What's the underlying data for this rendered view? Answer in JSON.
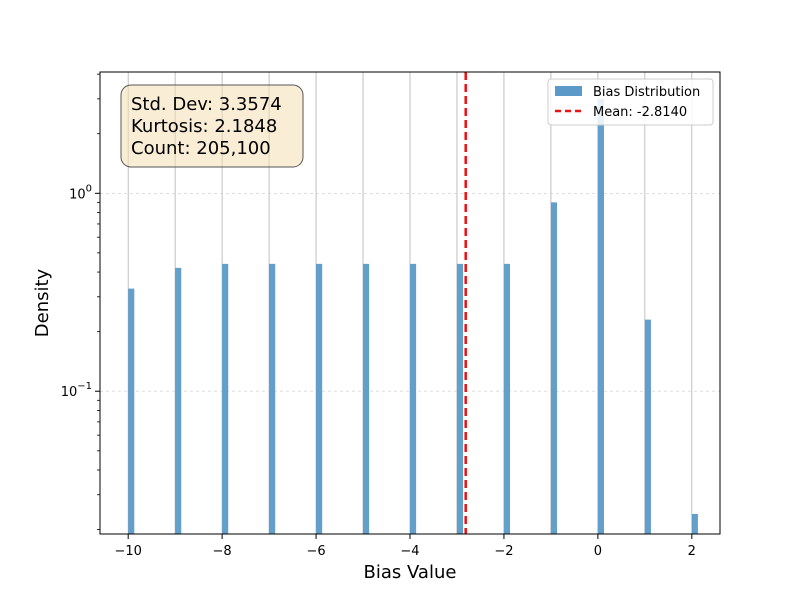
{
  "chart_data": {
    "type": "bar",
    "xlabel": "Bias Value",
    "ylabel": "Density",
    "y_scale": "log",
    "xlim": [
      -10.6,
      2.6
    ],
    "ylim": [
      0.019,
      4.1
    ],
    "x_ticks": [
      -10,
      -8,
      -6,
      -4,
      -2,
      0,
      2
    ],
    "x_tick_labels": [
      "−10",
      "−8",
      "−6",
      "−4",
      "−2",
      "0",
      "2"
    ],
    "y_ticks": [
      {
        "value": 0.1,
        "base": "10",
        "exp": "−1"
      },
      {
        "value": 1,
        "base": "10",
        "exp": "0"
      }
    ],
    "x_grid": true,
    "y_grid": true,
    "series": [
      {
        "name": "Bias Distribution",
        "color": "#5b9ac8",
        "bin_width": 0.13,
        "bins": [
          {
            "x": -10,
            "density": 0.33
          },
          {
            "x": -9,
            "density": 0.42
          },
          {
            "x": -8,
            "density": 0.44
          },
          {
            "x": -7,
            "density": 0.44
          },
          {
            "x": -6,
            "density": 0.44
          },
          {
            "x": -5,
            "density": 0.44
          },
          {
            "x": -4,
            "density": 0.44
          },
          {
            "x": -3,
            "density": 0.44
          },
          {
            "x": -2,
            "density": 0.44
          },
          {
            "x": -1,
            "density": 0.9
          },
          {
            "x": 0,
            "density": 3.0
          },
          {
            "x": 1,
            "density": 0.23
          },
          {
            "x": 2,
            "density": 0.024
          }
        ]
      }
    ],
    "mean_line": {
      "value": -2.814,
      "label": "Mean: -2.8140",
      "color": "#ee1111"
    },
    "legend": {
      "position": "top-right",
      "entries": [
        "Bias Distribution",
        "Mean: -2.8140"
      ]
    },
    "stats_box": {
      "lines": [
        "Std. Dev: 3.3574",
        "Kurtosis: 2.1848",
        "Count: 205,100"
      ]
    }
  }
}
